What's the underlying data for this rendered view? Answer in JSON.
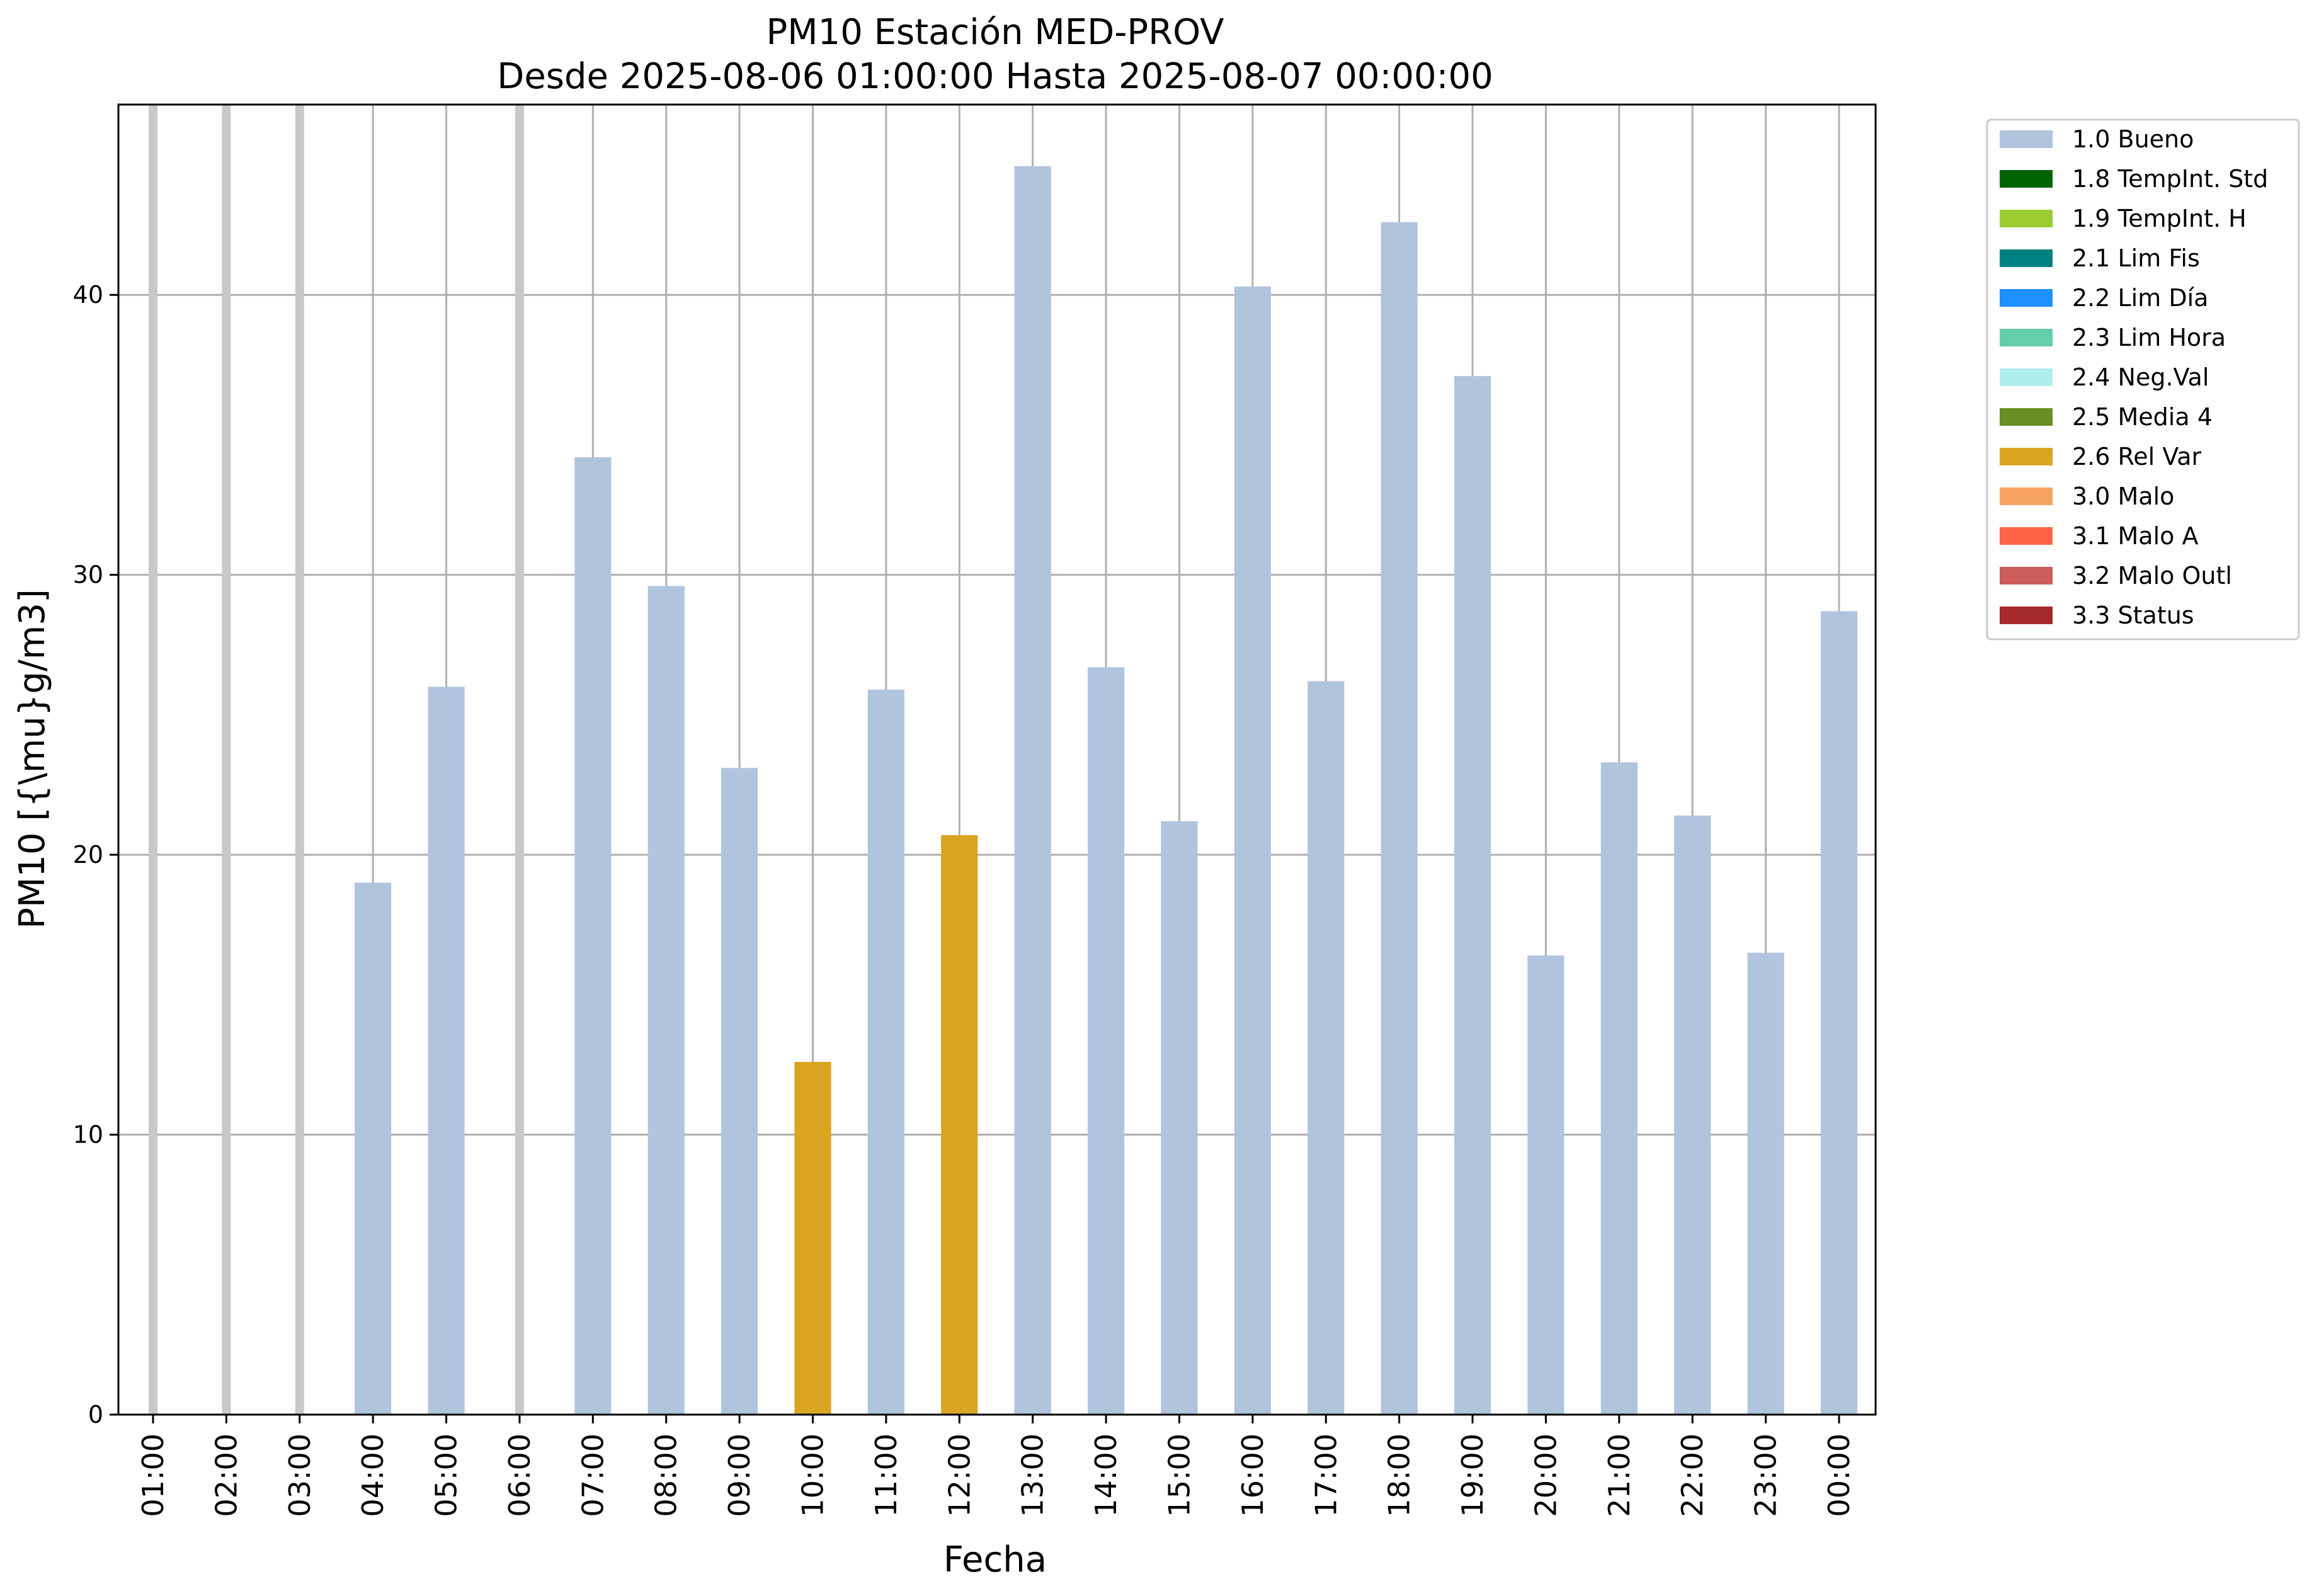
{
  "chart_data": {
    "type": "bar",
    "title": "PM10 Estación MED-PROV",
    "subtitle": "Desde 2025-08-06 01:00:00 Hasta 2025-08-07 00:00:00",
    "xlabel": "Fecha",
    "ylabel": "PM10 [{\\mu}g/m3]",
    "ylim": [
      0,
      46.8
    ],
    "yticks": [
      0,
      10,
      20,
      30,
      40
    ],
    "grid": true,
    "legend_position": "outside top-right",
    "categories": [
      "01:00",
      "02:00",
      "03:00",
      "04:00",
      "05:00",
      "06:00",
      "07:00",
      "08:00",
      "09:00",
      "10:00",
      "11:00",
      "12:00",
      "13:00",
      "14:00",
      "15:00",
      "16:00",
      "17:00",
      "18:00",
      "19:00",
      "20:00",
      "21:00",
      "22:00",
      "23:00",
      "00:00"
    ],
    "values": [
      null,
      null,
      null,
      19.0,
      26.0,
      null,
      34.2,
      29.6,
      23.1,
      12.6,
      25.9,
      20.7,
      44.6,
      26.7,
      21.2,
      40.3,
      26.2,
      42.6,
      37.1,
      16.4,
      23.3,
      21.4,
      16.5,
      28.7
    ],
    "flags": [
      "missing",
      "missing",
      "missing",
      "1.0 Bueno",
      "1.0 Bueno",
      "missing",
      "1.0 Bueno",
      "1.0 Bueno",
      "1.0 Bueno",
      "2.6 Rel Var",
      "1.0 Bueno",
      "2.6 Rel Var",
      "1.0 Bueno",
      "1.0 Bueno",
      "1.0 Bueno",
      "1.0 Bueno",
      "1.0 Bueno",
      "1.0 Bueno",
      "1.0 Bueno",
      "1.0 Bueno",
      "1.0 Bueno",
      "1.0 Bueno",
      "1.0 Bueno",
      "1.0 Bueno"
    ],
    "missing_marker_color": "#c8c8c8",
    "legend": [
      {
        "label": "1.0 Bueno",
        "color": "#b0c4de"
      },
      {
        "label": "1.8 TempInt. Std",
        "color": "#006400"
      },
      {
        "label": "1.9 TempInt. H",
        "color": "#9acd32"
      },
      {
        "label": "2.1 Lim Fis",
        "color": "#008080"
      },
      {
        "label": "2.2 Lim Día",
        "color": "#1e90ff"
      },
      {
        "label": "2.3 Lim Hora",
        "color": "#66cdaa"
      },
      {
        "label": "2.4 Neg.Val",
        "color": "#afeeee"
      },
      {
        "label": "2.5 Media 4",
        "color": "#6b8e23"
      },
      {
        "label": "2.6 Rel Var",
        "color": "#daa520"
      },
      {
        "label": "3.0 Malo",
        "color": "#f4a460"
      },
      {
        "label": "3.1 Malo A",
        "color": "#ff6347"
      },
      {
        "label": "3.2 Malo Outl",
        "color": "#cd5c5c"
      },
      {
        "label": "3.3 Status",
        "color": "#a52a2a"
      }
    ]
  }
}
